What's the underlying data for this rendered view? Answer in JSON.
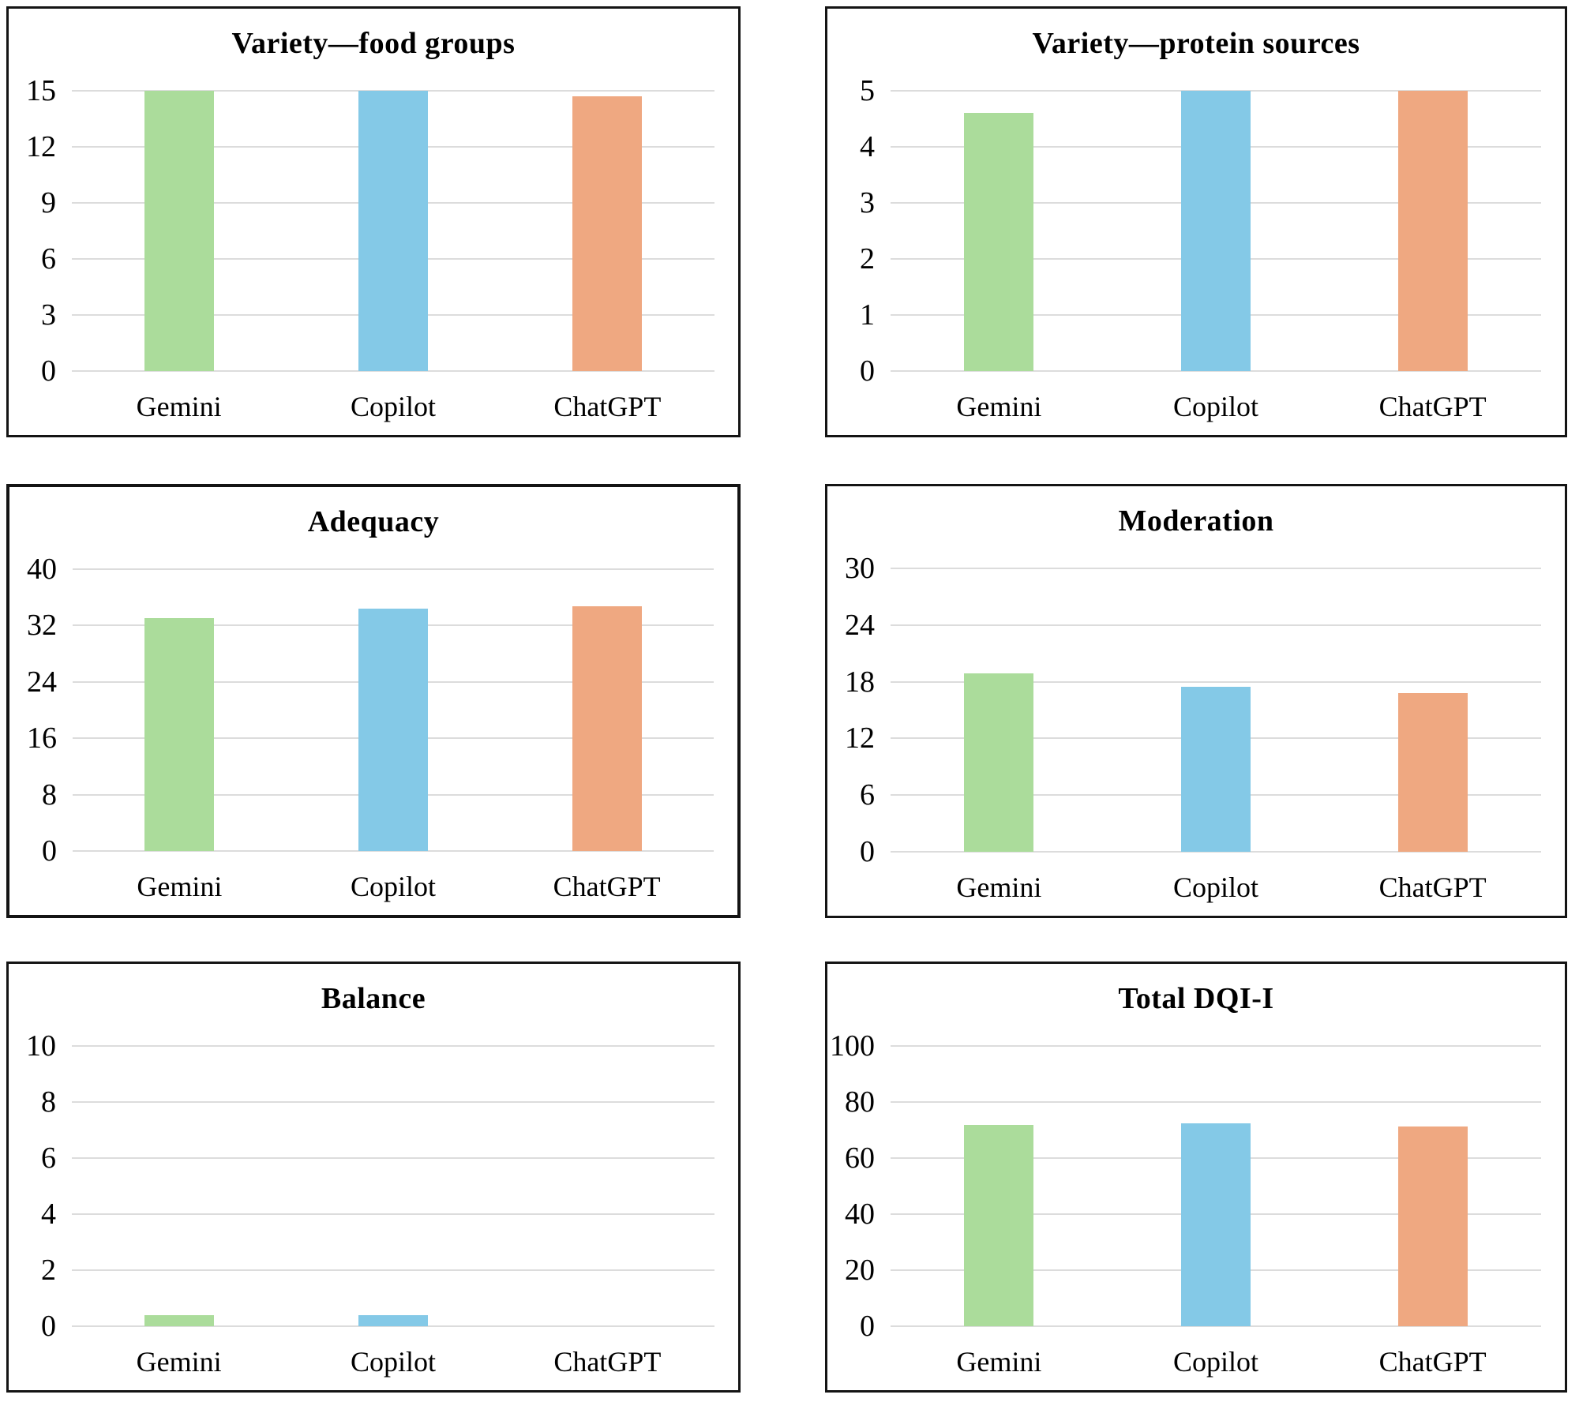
{
  "figure": {
    "bar_colors": [
      "#ABDC9B",
      "#84C9E7",
      "#EFA881"
    ],
    "gridline_color": "#DCDCDC",
    "border_color": "#141414",
    "categories": [
      "Gemini",
      "Copilot",
      "ChatGPT"
    ]
  },
  "chart_data": [
    {
      "type": "bar",
      "title": "Variety—food groups",
      "categories": [
        "Gemini",
        "Copilot",
        "ChatGPT"
      ],
      "values": [
        15,
        15,
        14.7
      ],
      "ylim": [
        0,
        15
      ],
      "yticks": [
        0,
        3,
        6,
        9,
        12,
        15
      ],
      "xlabel": "",
      "ylabel": "",
      "grid": "horizontal",
      "legend_position": "none"
    },
    {
      "type": "bar",
      "title": "Variety—protein sources",
      "categories": [
        "Gemini",
        "Copilot",
        "ChatGPT"
      ],
      "values": [
        4.6,
        5,
        5
      ],
      "ylim": [
        0,
        5
      ],
      "yticks": [
        0,
        1,
        2,
        3,
        4,
        5
      ],
      "xlabel": "",
      "ylabel": "",
      "grid": "horizontal",
      "legend_position": "none"
    },
    {
      "type": "bar",
      "title": "Adequacy",
      "categories": [
        "Gemini",
        "Copilot",
        "ChatGPT"
      ],
      "values": [
        33,
        34.4,
        34.7
      ],
      "ylim": [
        0,
        40
      ],
      "yticks": [
        0,
        8,
        16,
        24,
        32,
        40
      ],
      "xlabel": "",
      "ylabel": "",
      "grid": "horizontal",
      "legend_position": "none"
    },
    {
      "type": "bar",
      "title": "Moderation",
      "categories": [
        "Gemini",
        "Copilot",
        "ChatGPT"
      ],
      "values": [
        18.9,
        17.5,
        16.8
      ],
      "ylim": [
        0,
        30
      ],
      "yticks": [
        0,
        6,
        12,
        18,
        24,
        30
      ],
      "xlabel": "",
      "ylabel": "",
      "grid": "horizontal",
      "legend_position": "none"
    },
    {
      "type": "bar",
      "title": "Balance",
      "categories": [
        "Gemini",
        "Copilot",
        "ChatGPT"
      ],
      "values": [
        0.4,
        0.4,
        0
      ],
      "ylim": [
        0,
        10
      ],
      "yticks": [
        0,
        2,
        4,
        6,
        8,
        10
      ],
      "xlabel": "",
      "ylabel": "",
      "grid": "horizontal",
      "legend_position": "none"
    },
    {
      "type": "bar",
      "title": "Total DQI-I",
      "categories": [
        "Gemini",
        "Copilot",
        "ChatGPT"
      ],
      "values": [
        71.9,
        72.4,
        71.2
      ],
      "ylim": [
        0,
        100
      ],
      "yticks": [
        0,
        20,
        40,
        60,
        80,
        100
      ],
      "xlabel": "",
      "ylabel": "",
      "grid": "horizontal",
      "legend_position": "none"
    }
  ]
}
